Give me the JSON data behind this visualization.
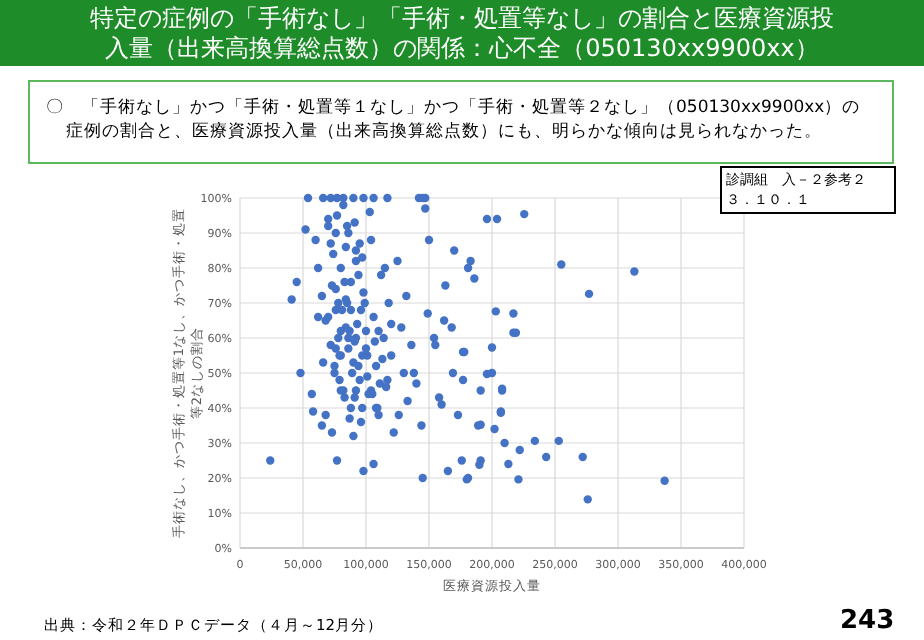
{
  "chart_data": {
    "type": "scatter",
    "title": "特定の症例の「手術なし」「手術・処置等なし」の割合と医療資源投入量（出来高換算総点数）の関係：心不全（050130xx9900xx）",
    "annotations": [
      "〇　「手術なし」かつ「手術・処置等１なし」かつ「手術・処置等２なし」（050130xx9900xx）の症例の割合と、医療資源投入量（出来高換算総点数）にも、明らかな傾向は見られなかった。",
      "診調組　入－２参考２",
      "３．１０．１",
      "出典：令和２年ＤＰＣデータ（４月～12月分）",
      "243"
    ],
    "xlabel": "医療資源投入量",
    "ylabel": "手術なし、かつ手術・処置等1なし、かつ手術・処置等2なしの割合",
    "xlim": [
      0,
      400000
    ],
    "ylim": [
      0,
      100
    ],
    "xticks": [
      {
        "value": 0,
        "label": "0"
      },
      {
        "value": 50000,
        "label": "50,000"
      },
      {
        "value": 100000,
        "label": "100,000"
      },
      {
        "value": 150000,
        "label": "150,000"
      },
      {
        "value": 200000,
        "label": "200,000"
      },
      {
        "value": 250000,
        "label": "250,000"
      },
      {
        "value": 300000,
        "label": "300,000"
      },
      {
        "value": 350000,
        "label": "350,000"
      },
      {
        "value": 400000,
        "label": "400,000"
      }
    ],
    "yticks": [
      {
        "value": 0,
        "label": "0%"
      },
      {
        "value": 10,
        "label": "10%"
      },
      {
        "value": 20,
        "label": "20%"
      },
      {
        "value": 30,
        "label": "30%"
      },
      {
        "value": 40,
        "label": "40%"
      },
      {
        "value": 50,
        "label": "50%"
      },
      {
        "value": 60,
        "label": "60%"
      },
      {
        "value": 70,
        "label": "70%"
      },
      {
        "value": 80,
        "label": "80%"
      },
      {
        "value": 90,
        "label": "90%"
      },
      {
        "value": 100,
        "label": "100%"
      }
    ],
    "grid": true,
    "marker": "circle",
    "series": [
      {
        "color": "#4472c4",
        "x": [
          54000,
          66000,
          72000,
          77000,
          82000,
          90000,
          98000,
          106000,
          117000,
          142000,
          145000,
          147000,
          147000,
          52000,
          48000,
          41000,
          45000,
          57000,
          65000,
          77000,
          90000,
          98000,
          106000,
          145000,
          165000,
          181000,
          176000,
          191000,
          196000,
          204000,
          200000,
          208000,
          207000,
          210000,
          183000,
          186000,
          181000,
          170000,
          163000,
          149000,
          168000,
          154000,
          177000,
          169000,
          177000,
          191000,
          160000,
          173000,
          189000,
          213000,
          217000,
          225600,
          255000,
          313000,
          277000,
          203000,
          217000,
          219000,
          200000,
          178000,
          196000,
          208000,
          207000,
          191000,
          202000,
          234000,
          253000,
          222000,
          243000,
          272000,
          190000,
          180000,
          221000,
          337000,
          276000,
          24000,
          60000,
          62000,
          65000,
          68000,
          70000,
          72000,
          74000,
          75000,
          76000,
          78000,
          80000,
          80000,
          82000,
          83000,
          85000,
          86000,
          88000,
          88000,
          90000,
          92000,
          93000,
          95000,
          96000,
          98000,
          100000,
          102000,
          104000,
          106000,
          108000,
          110000,
          112000,
          114000,
          116000,
          118000,
          120000,
          122000,
          125000,
          128000,
          130000,
          133000,
          136000,
          140000,
          58000,
          62000,
          66000,
          70000,
          73000,
          76000,
          79000,
          84000,
          87000,
          91000,
          94000,
          99000,
          103000,
          107000,
          111000,
          115000,
          120000,
          126000,
          132000,
          138000,
          144000,
          150000,
          155000,
          158000,
          162000,
          97000,
          101000,
          85000,
          80000,
          92000,
          110000,
          76000,
          70000,
          75000,
          78000,
          81000,
          84000,
          86000,
          89000,
          91000,
          94000,
          97000,
          72000,
          76000,
          80000,
          84000,
          88000,
          92000,
          96000,
          100000,
          104000,
          108000,
          79000,
          83000,
          87000,
          92000,
          97000,
          101000,
          105000,
          109000,
          113000,
          117000,
          68000,
          73000,
          77000,
          82000,
          86000,
          91000,
          95000
        ],
        "values": [
          100,
          100,
          100,
          100,
          100,
          100,
          100,
          100,
          100,
          100,
          100,
          100,
          97,
          91,
          50,
          71,
          76,
          44,
          35,
          25,
          32,
          22,
          24,
          20,
          22,
          20,
          25,
          25,
          94,
          94,
          50,
          45,
          39,
          30,
          82,
          77,
          80,
          85,
          75,
          67,
          63,
          60,
          56,
          50,
          48,
          45,
          41,
          38,
          35,
          24,
          67,
          95.4,
          81,
          79,
          72.6,
          67.6,
          61.5,
          61.5,
          57.3,
          56,
          49.7,
          45.5,
          38.6,
          35.2,
          34,
          30.6,
          30.6,
          28,
          26,
          26,
          23.8,
          19.6,
          19.6,
          19.2,
          13.9,
          25,
          88,
          80,
          72,
          65,
          94,
          58,
          84,
          50,
          90,
          70,
          62,
          55,
          45,
          76,
          92,
          60,
          40,
          68,
          53,
          85,
          64,
          48,
          36,
          73,
          57,
          44,
          88,
          66,
          52,
          38,
          78,
          60,
          46,
          70,
          55,
          33,
          82,
          63,
          50,
          42,
          58,
          47,
          39,
          66,
          53,
          92,
          75,
          68,
          55,
          86,
          62,
          43,
          52,
          70,
          96,
          59,
          47,
          80,
          64,
          38,
          72,
          50,
          35,
          88,
          58,
          43,
          65,
          40,
          55,
          70,
          45,
          60,
          62,
          57,
          66,
          52,
          60,
          68,
          63,
          57,
          50,
          59,
          78,
          83,
          87,
          74,
          80,
          71,
          76,
          82,
          68,
          62,
          45,
          40,
          48,
          43,
          37,
          45,
          55,
          49,
          44,
          40,
          54,
          48,
          38,
          33,
          95,
          98,
          90,
          93,
          87
        ]
      }
    ]
  }
}
